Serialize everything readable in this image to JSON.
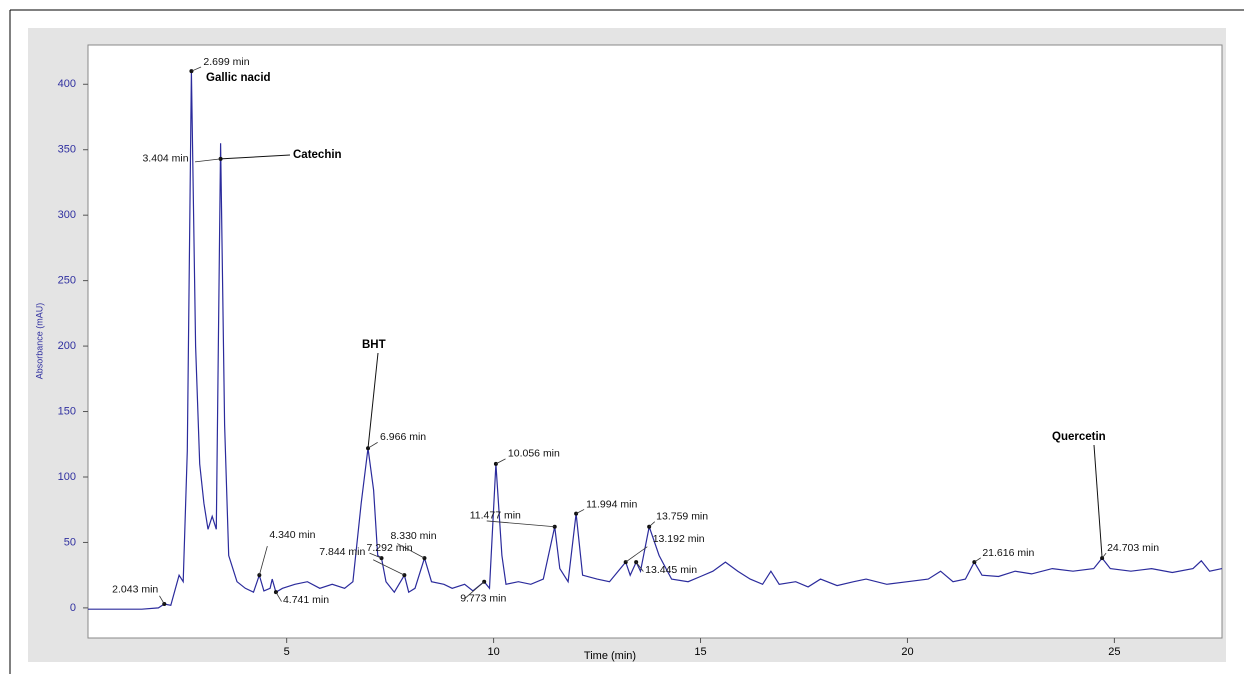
{
  "chart_data": {
    "type": "line",
    "xlabel": "Time (min)",
    "ylabel": "Absorbance (mAU)",
    "xlim": [
      0.2,
      27.6
    ],
    "ylim": [
      -23,
      430
    ],
    "xticks": [
      5,
      10,
      15,
      20,
      25
    ],
    "yticks": [
      0,
      50,
      100,
      150,
      200,
      250,
      300,
      350,
      400
    ],
    "x": [
      0.2,
      1.5,
      1.9,
      2.043,
      2.2,
      2.4,
      2.5,
      2.6,
      2.699,
      2.8,
      2.9,
      3.0,
      3.1,
      3.2,
      3.3,
      3.404,
      3.5,
      3.6,
      3.8,
      4.0,
      4.2,
      4.34,
      4.45,
      4.6,
      4.65,
      4.741,
      4.9,
      5.2,
      5.5,
      5.8,
      6.1,
      6.4,
      6.6,
      6.8,
      6.966,
      7.1,
      7.2,
      7.292,
      7.4,
      7.6,
      7.844,
      7.95,
      8.1,
      8.33,
      8.5,
      8.8,
      9.0,
      9.3,
      9.5,
      9.773,
      9.9,
      10.056,
      10.2,
      10.3,
      10.6,
      10.9,
      11.2,
      11.477,
      11.6,
      11.8,
      11.994,
      12.15,
      12.5,
      12.8,
      13.192,
      13.3,
      13.445,
      13.55,
      13.759,
      14.0,
      14.3,
      14.7,
      15.0,
      15.3,
      15.6,
      15.9,
      16.2,
      16.5,
      16.7,
      16.9,
      17.3,
      17.6,
      17.9,
      18.3,
      18.7,
      19.0,
      19.5,
      20.0,
      20.5,
      20.8,
      21.1,
      21.4,
      21.616,
      21.8,
      22.2,
      22.6,
      23.0,
      23.5,
      24.0,
      24.5,
      24.703,
      24.9,
      25.4,
      25.9,
      26.4,
      26.9,
      27.1,
      27.3,
      27.6
    ],
    "series": [
      {
        "color": "#2b2b9c",
        "values": [
          -1,
          -1,
          0,
          3,
          2,
          25,
          20,
          120,
          410,
          200,
          110,
          80,
          60,
          70,
          60,
          355,
          140,
          40,
          20,
          15,
          12,
          25,
          13,
          15,
          22,
          12,
          15,
          18,
          20,
          15,
          18,
          15,
          20,
          80,
          122,
          90,
          40,
          38,
          20,
          12,
          25,
          12,
          15,
          38,
          20,
          18,
          15,
          18,
          13,
          20,
          15,
          110,
          40,
          18,
          20,
          18,
          22,
          62,
          30,
          20,
          72,
          25,
          22,
          20,
          35,
          25,
          35,
          28,
          62,
          40,
          22,
          20,
          24,
          28,
          35,
          28,
          22,
          18,
          28,
          18,
          20,
          16,
          22,
          17,
          20,
          22,
          18,
          20,
          22,
          28,
          20,
          22,
          35,
          25,
          24,
          28,
          26,
          30,
          28,
          30,
          38,
          30,
          28,
          30,
          27,
          30,
          36,
          28,
          30
        ]
      }
    ],
    "annotations": [
      {
        "text": "2.043 min",
        "x": 2.043,
        "y": 3
      },
      {
        "text": "2.699 min",
        "x": 2.699,
        "y": 410
      },
      {
        "text": "3.404 min",
        "x": 3.404,
        "y": 343
      },
      {
        "text": "4.340 min",
        "x": 4.34,
        "y": 25
      },
      {
        "text": "4.741 min",
        "x": 4.741,
        "y": 12
      },
      {
        "text": "6.966 min",
        "x": 6.966,
        "y": 122
      },
      {
        "text": "7.844 min",
        "x": 7.844,
        "y": 25
      },
      {
        "text": "7.292 min",
        "x": 7.292,
        "y": 38
      },
      {
        "text": "8.330 min",
        "x": 8.33,
        "y": 38
      },
      {
        "text": "9.773 min",
        "x": 9.773,
        "y": 20
      },
      {
        "text": "10.056 min",
        "x": 10.056,
        "y": 110
      },
      {
        "text": "11.477 min",
        "x": 11.477,
        "y": 62
      },
      {
        "text": "11.994 min",
        "x": 11.994,
        "y": 72
      },
      {
        "text": "13.759 min",
        "x": 13.759,
        "y": 62
      },
      {
        "text": "13.192 min",
        "x": 13.192,
        "y": 35
      },
      {
        "text": "13.445 min",
        "x": 13.445,
        "y": 35
      },
      {
        "text": "21.616 min",
        "x": 21.616,
        "y": 35
      },
      {
        "text": "24.703 min",
        "x": 24.703,
        "y": 38
      }
    ],
    "compounds": [
      {
        "text": "Gallic nacid",
        "peak": 1
      },
      {
        "text": "Catechin",
        "peak": 2
      },
      {
        "text": "BHT",
        "peak": 5
      },
      {
        "text": "Quercetin",
        "peak": 17
      }
    ]
  }
}
